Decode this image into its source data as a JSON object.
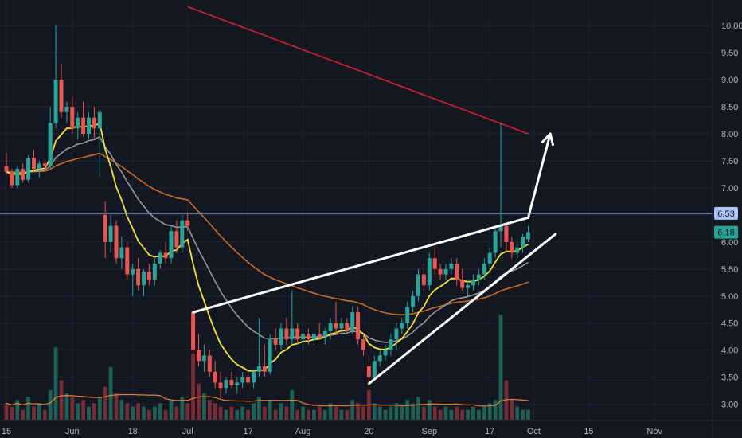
{
  "chart_data": {
    "type": "candlestick",
    "title": "",
    "xlabel": "",
    "ylabel": "",
    "ylim": [
      2.7,
      10.4
    ],
    "x_ticks": [
      "15",
      "Jun",
      "18",
      "Jul",
      "17",
      "Aug",
      "20",
      "Sep",
      "17",
      "Oct",
      "15",
      "Nov"
    ],
    "y_ticks": [
      "3.00",
      "3.50",
      "4.00",
      "4.50",
      "5.00",
      "5.50",
      "6.00",
      "6.50",
      "7.00",
      "7.50",
      "8.00",
      "8.50",
      "9.00",
      "9.50",
      "10.00"
    ],
    "price_labels": {
      "resistance": "6.53",
      "last": "6.18"
    },
    "horizontal_line": 6.53,
    "grid": true,
    "colors": {
      "up": "#26a69a",
      "down": "#ef5350",
      "ma_fast": "#f5e529",
      "ma_mid": "#9598a1",
      "ma_slow": "#cc6a1e",
      "ma_long": "#c41f2b",
      "level_line": "#aac4f5",
      "annotation": "#ffffff",
      "volume_ma": "#e8802f"
    },
    "candles": [
      [
        7.4,
        7.65,
        7.25,
        7.3
      ],
      [
        7.3,
        7.35,
        7.0,
        7.05
      ],
      [
        7.05,
        7.4,
        7.0,
        7.35
      ],
      [
        7.35,
        7.45,
        7.1,
        7.15
      ],
      [
        7.15,
        7.6,
        7.1,
        7.55
      ],
      [
        7.55,
        7.7,
        7.3,
        7.35
      ],
      [
        7.35,
        7.5,
        7.2,
        7.45
      ],
      [
        7.45,
        7.55,
        7.3,
        7.4
      ],
      [
        7.4,
        8.5,
        7.35,
        8.2
      ],
      [
        8.2,
        10.0,
        8.1,
        9.0
      ],
      [
        9.0,
        9.3,
        8.3,
        8.4
      ],
      [
        8.4,
        8.6,
        8.2,
        8.5
      ],
      [
        8.5,
        8.7,
        8.0,
        8.1
      ],
      [
        8.1,
        8.4,
        7.9,
        8.3
      ],
      [
        8.3,
        8.6,
        7.95,
        8.0
      ],
      [
        8.0,
        8.4,
        7.9,
        8.3
      ],
      [
        8.3,
        8.5,
        7.9,
        8.1
      ],
      [
        8.1,
        8.45,
        7.2,
        8.4
      ],
      [
        6.5,
        6.75,
        5.7,
        6.0
      ],
      [
        6.0,
        6.5,
        5.8,
        6.3
      ],
      [
        6.3,
        6.4,
        5.6,
        5.7
      ],
      [
        5.7,
        6.1,
        5.5,
        5.9
      ],
      [
        5.9,
        6.0,
        5.3,
        5.4
      ],
      [
        5.4,
        5.6,
        5.0,
        5.5
      ],
      [
        5.5,
        5.7,
        5.1,
        5.2
      ],
      [
        5.2,
        5.5,
        5.0,
        5.45
      ],
      [
        5.45,
        5.6,
        5.2,
        5.3
      ],
      [
        5.3,
        5.7,
        5.2,
        5.6
      ],
      [
        5.6,
        5.85,
        5.5,
        5.8
      ],
      [
        5.8,
        6.0,
        5.6,
        5.7
      ],
      [
        5.7,
        6.3,
        5.6,
        6.2
      ],
      [
        6.2,
        6.4,
        5.8,
        5.9
      ],
      [
        5.9,
        6.5,
        5.8,
        6.4
      ],
      [
        6.4,
        6.55,
        6.2,
        6.3
      ],
      [
        4.7,
        4.8,
        3.9,
        4.0
      ],
      [
        4.0,
        4.3,
        3.7,
        3.8
      ],
      [
        3.8,
        4.1,
        3.6,
        3.9
      ],
      [
        3.9,
        4.0,
        3.5,
        3.6
      ],
      [
        3.6,
        3.8,
        3.3,
        3.4
      ],
      [
        3.4,
        3.6,
        3.1,
        3.3
      ],
      [
        3.3,
        3.5,
        3.2,
        3.45
      ],
      [
        3.45,
        3.6,
        3.3,
        3.35
      ],
      [
        3.35,
        3.5,
        3.2,
        3.4
      ],
      [
        3.4,
        3.6,
        3.3,
        3.5
      ],
      [
        3.5,
        3.6,
        3.35,
        3.4
      ],
      [
        3.4,
        3.65,
        3.3,
        3.6
      ],
      [
        3.6,
        4.6,
        3.5,
        3.7
      ],
      [
        3.7,
        4.1,
        3.5,
        3.6
      ],
      [
        3.6,
        4.3,
        3.55,
        4.2
      ],
      [
        4.2,
        4.4,
        4.0,
        4.1
      ],
      [
        4.1,
        4.5,
        4.0,
        4.4
      ],
      [
        4.4,
        4.6,
        4.1,
        4.2
      ],
      [
        4.2,
        5.1,
        4.1,
        4.4
      ],
      [
        4.4,
        4.5,
        4.1,
        4.2
      ],
      [
        4.2,
        4.4,
        4.0,
        4.3
      ],
      [
        4.3,
        4.4,
        4.1,
        4.2
      ],
      [
        4.2,
        4.35,
        4.1,
        4.3
      ],
      [
        4.3,
        4.5,
        4.2,
        4.25
      ],
      [
        4.25,
        4.4,
        4.1,
        4.35
      ],
      [
        4.35,
        4.6,
        4.2,
        4.5
      ],
      [
        4.5,
        4.9,
        4.3,
        4.4
      ],
      [
        4.4,
        4.6,
        4.3,
        4.5
      ],
      [
        4.5,
        4.6,
        4.3,
        4.35
      ],
      [
        4.35,
        4.8,
        4.3,
        4.7
      ],
      [
        4.7,
        4.8,
        4.1,
        4.2
      ],
      [
        4.2,
        4.3,
        3.9,
        4.0
      ],
      [
        3.7,
        3.9,
        3.35,
        3.5
      ],
      [
        3.5,
        3.9,
        3.45,
        3.8
      ],
      [
        3.8,
        4.0,
        3.7,
        3.9
      ],
      [
        3.9,
        4.1,
        3.8,
        4.0
      ],
      [
        4.0,
        4.3,
        3.9,
        4.2
      ],
      [
        4.2,
        4.5,
        4.0,
        4.4
      ],
      [
        4.4,
        4.6,
        4.3,
        4.5
      ],
      [
        4.5,
        4.9,
        4.4,
        4.8
      ],
      [
        4.8,
        5.1,
        4.7,
        5.0
      ],
      [
        5.0,
        5.5,
        4.9,
        5.4
      ],
      [
        5.4,
        5.6,
        5.1,
        5.2
      ],
      [
        5.2,
        5.8,
        5.1,
        5.7
      ],
      [
        5.7,
        5.9,
        5.4,
        5.5
      ],
      [
        5.5,
        5.6,
        5.3,
        5.4
      ],
      [
        5.4,
        5.6,
        5.3,
        5.5
      ],
      [
        5.5,
        5.7,
        5.4,
        5.6
      ],
      [
        5.6,
        5.7,
        5.2,
        5.3
      ],
      [
        5.3,
        5.5,
        5.1,
        5.15
      ],
      [
        5.15,
        5.3,
        5.0,
        5.2
      ],
      [
        5.2,
        5.4,
        5.1,
        5.3
      ],
      [
        5.3,
        5.5,
        5.2,
        5.4
      ],
      [
        5.4,
        5.7,
        5.3,
        5.6
      ],
      [
        5.6,
        5.9,
        5.5,
        5.8
      ],
      [
        5.8,
        6.3,
        5.7,
        6.2
      ],
      [
        6.2,
        8.2,
        5.9,
        6.3
      ],
      [
        6.3,
        6.35,
        5.8,
        6.0
      ],
      [
        6.0,
        6.1,
        5.7,
        5.8
      ],
      [
        5.8,
        6.0,
        5.7,
        5.9
      ],
      [
        5.9,
        6.15,
        5.8,
        6.1
      ],
      [
        6.05,
        6.3,
        6.0,
        6.18
      ]
    ],
    "volume": [
      5,
      4,
      6,
      3,
      7,
      4,
      5,
      3,
      9,
      22,
      12,
      8,
      7,
      5,
      6,
      4,
      5,
      7,
      10,
      16,
      8,
      6,
      5,
      4,
      5,
      4,
      3,
      4,
      5,
      3,
      6,
      4,
      7,
      5,
      20,
      11,
      8,
      6,
      5,
      4,
      3,
      4,
      3,
      4,
      3,
      5,
      7,
      4,
      6,
      3,
      5,
      4,
      9,
      3,
      4,
      3,
      3,
      4,
      3,
      5,
      4,
      3,
      3,
      6,
      5,
      4,
      9,
      5,
      4,
      3,
      4,
      5,
      4,
      6,
      5,
      7,
      4,
      6,
      4,
      3,
      4,
      3,
      4,
      3,
      3,
      4,
      3,
      4,
      5,
      6,
      32,
      12,
      6,
      4,
      3,
      3
    ],
    "annotations": [
      {
        "type": "trendline",
        "from": [
          34,
          4.7
        ],
        "to": [
          95,
          6.45
        ]
      },
      {
        "type": "trendline",
        "from": [
          66,
          3.38
        ],
        "to": [
          100,
          6.15
        ]
      },
      {
        "type": "arrow",
        "from": [
          95,
          6.45
        ],
        "to": [
          99,
          8.0
        ]
      }
    ]
  }
}
